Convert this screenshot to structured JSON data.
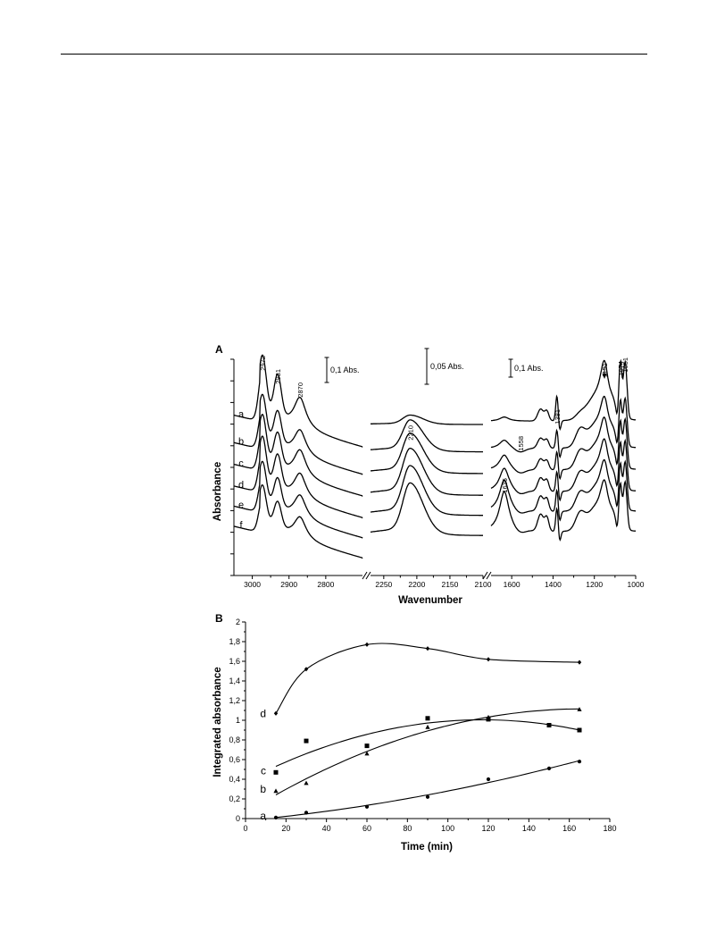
{
  "page": {
    "rule_color": "#000000"
  },
  "chart_data": [
    {
      "panel": "A",
      "type": "line",
      "xlabel": "Wavenumber",
      "ylabel": "Absorbance",
      "x_reversed": true,
      "x_breaks": true,
      "segments": [
        {
          "range": [
            3050,
            2700
          ],
          "ticks": [
            3000,
            2900,
            2800
          ],
          "tick_labels": [
            "3000",
            "2900",
            "2800"
          ],
          "scale_bar": "0,1 Abs."
        },
        {
          "range": [
            2270,
            2100
          ],
          "ticks": [
            2250,
            2200,
            2150,
            2100
          ],
          "tick_labels": [
            "2250",
            "2200",
            "2150",
            "2100"
          ],
          "scale_bar": "0,05 Abs."
        },
        {
          "range": [
            1700,
            1000
          ],
          "ticks": [
            1600,
            1400,
            1200,
            1000
          ],
          "tick_labels": [
            "1600",
            "1400",
            "1200",
            "1000"
          ],
          "scale_bar": "0,1 Abs."
        }
      ],
      "series": [
        {
          "name": "a",
          "offset": 0.0,
          "reg1": [
            0.62,
            0.48,
            0.36
          ],
          "reg2": 0.1,
          "reg3": [
            0.05,
            0.04,
            0.14,
            0.3,
            0.05,
            0.62,
            0.62,
            0.66
          ]
        },
        {
          "name": "b",
          "offset": 0.17,
          "reg1": [
            0.48,
            0.38,
            0.3
          ],
          "reg2": 0.34,
          "reg3": [
            0.1,
            0.02,
            0.12,
            0.22,
            0.18,
            0.52,
            0.5,
            0.56
          ]
        },
        {
          "name": "c",
          "offset": 0.305,
          "reg1": [
            0.5,
            0.38,
            0.32
          ],
          "reg2": 0.43,
          "reg3": [
            0.18,
            0.02,
            0.13,
            0.22,
            0.18,
            0.53,
            0.51,
            0.57
          ]
        },
        {
          "name": "d",
          "offset": 0.44,
          "reg1": [
            0.5,
            0.38,
            0.3
          ],
          "reg2": 0.5,
          "reg3": [
            0.28,
            0.02,
            0.16,
            0.24,
            0.18,
            0.53,
            0.51,
            0.57
          ]
        },
        {
          "name": "e",
          "offset": 0.565,
          "reg1": [
            0.44,
            0.34,
            0.28
          ],
          "reg2": 0.53,
          "reg3": [
            0.38,
            0.02,
            0.18,
            0.26,
            0.18,
            0.52,
            0.5,
            0.56
          ]
        },
        {
          "name": "f",
          "offset": 0.69,
          "reg1": [
            0.4,
            0.3,
            0.26
          ],
          "reg2": 0.56,
          "reg3": [
            0.48,
            0.02,
            0.2,
            0.28,
            0.18,
            0.52,
            0.5,
            0.56
          ]
        }
      ],
      "peak_labels": [
        {
          "text": "2972",
          "x": 2972
        },
        {
          "text": "2931",
          "x": 2931
        },
        {
          "text": "2870",
          "x": 2870
        },
        {
          "text": "2210",
          "x": 2210
        },
        {
          "text": "1558",
          "x": 1558
        },
        {
          "text": "1636",
          "x": 1636
        },
        {
          "text": "1381",
          "x": 1381
        },
        {
          "text": "1151",
          "x": 1151
        },
        {
          "text": "1074",
          "x": 1074
        },
        {
          "text": "1051",
          "x": 1051
        }
      ]
    },
    {
      "panel": "B",
      "type": "scatter",
      "xlabel": "Time (min)",
      "ylabel": "Integrated absorbance",
      "xlim": [
        0,
        180
      ],
      "ylim": [
        0,
        2
      ],
      "xticks": [
        "0",
        "20",
        "40",
        "60",
        "80",
        "100",
        "120",
        "140",
        "160",
        "180"
      ],
      "yticks": [
        "0",
        "0,2",
        "0,4",
        "0,6",
        "0,8",
        "1",
        "1,2",
        "1,4",
        "1,6",
        "1,8",
        "2"
      ],
      "series": [
        {
          "name": "a",
          "marker": "circle",
          "x": [
            15,
            30,
            60,
            90,
            120,
            150,
            165
          ],
          "y": [
            0.01,
            0.06,
            0.12,
            0.22,
            0.4,
            0.51,
            0.58
          ]
        },
        {
          "name": "b",
          "marker": "triangle",
          "x": [
            15,
            30,
            60,
            90,
            120,
            165
          ],
          "y": [
            0.28,
            0.36,
            0.66,
            0.93,
            1.03,
            1.11
          ]
        },
        {
          "name": "c",
          "marker": "square",
          "x": [
            15,
            30,
            60,
            90,
            120,
            150,
            165
          ],
          "y": [
            0.47,
            0.79,
            0.74,
            1.02,
            1.01,
            0.95,
            0.9
          ]
        },
        {
          "name": "d",
          "marker": "diamond",
          "x": [
            15,
            30,
            60,
            90,
            120,
            165
          ],
          "y": [
            1.07,
            1.52,
            1.77,
            1.73,
            1.62,
            1.59
          ]
        }
      ]
    }
  ]
}
